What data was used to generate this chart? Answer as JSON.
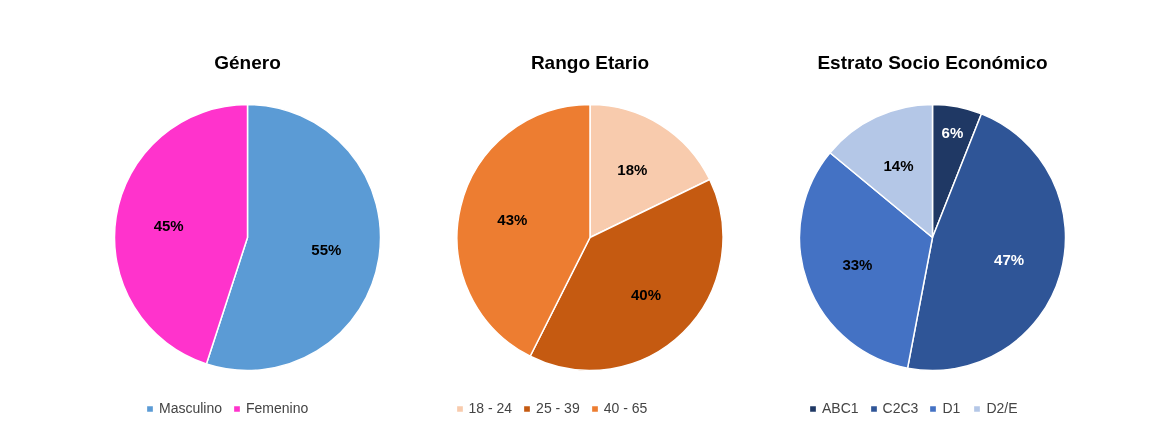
{
  "chart_data": [
    {
      "type": "pie",
      "title": "Género",
      "categories": [
        "Masculino",
        "Femenino"
      ],
      "values": [
        55,
        45
      ],
      "colors": [
        "#5b9bd5",
        "#ff33cc"
      ],
      "value_labels": [
        "55%",
        "45%"
      ],
      "legend": "bottom"
    },
    {
      "type": "pie",
      "title": "Rango Etario",
      "categories": [
        "18 - 24",
        "25 - 39",
        "40 - 65"
      ],
      "values": [
        18,
        40,
        43
      ],
      "colors": [
        "#f8cbad",
        "#c55a11",
        "#ed7d31"
      ],
      "value_labels": [
        "18%",
        "40%",
        "43%"
      ],
      "legend": "bottom"
    },
    {
      "type": "pie",
      "title": "Estrato Socio Económico",
      "categories": [
        "ABC1",
        "C2C3",
        "D1",
        "D2/E"
      ],
      "values": [
        6,
        47,
        33,
        14
      ],
      "colors": [
        "#1f3864",
        "#2f5597",
        "#4472c4",
        "#b4c7e7"
      ],
      "value_labels": [
        "6%",
        "47%",
        "33%",
        "14%"
      ],
      "legend": "bottom"
    }
  ]
}
